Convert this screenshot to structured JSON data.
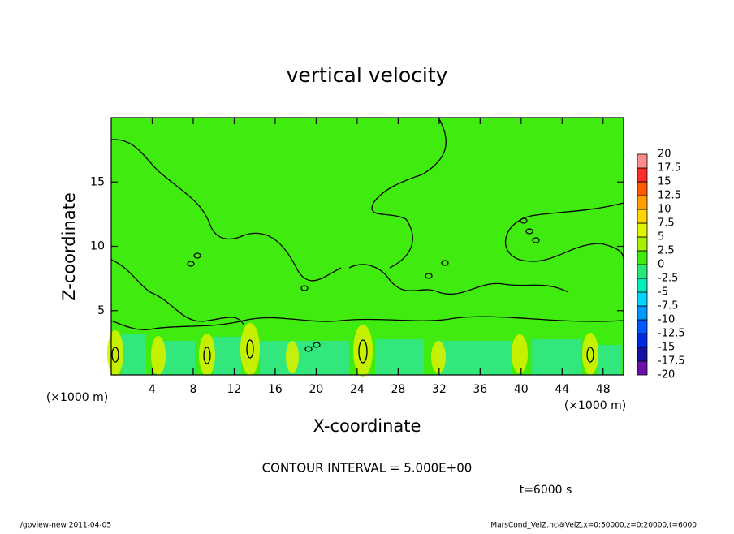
{
  "chart_data": {
    "type": "contour",
    "title": "vertical velocity",
    "x_label": "X-coordinate",
    "y_label": "Z-coordinate",
    "x_unit": "(×1000 m)",
    "xlim": [
      0,
      50
    ],
    "xticks": [
      4,
      8,
      12,
      16,
      20,
      24,
      28,
      32,
      36,
      40,
      44,
      48
    ],
    "ylim": [
      0,
      20
    ],
    "yticks": [
      5,
      10,
      15
    ],
    "colorbar": {
      "levels": [
        -20,
        -17.5,
        -15,
        -12.5,
        -10,
        -7.5,
        -5,
        -2.5,
        0,
        2.5,
        5,
        7.5,
        10,
        12.5,
        15,
        17.5,
        20
      ],
      "colors": [
        "#6a0fa8",
        "#1414a0",
        "#0028e0",
        "#0058ff",
        "#0098ff",
        "#00d4ff",
        "#00eebb",
        "#28e878",
        "#40ec10",
        "#a6f000",
        "#dcf400",
        "#ffd400",
        "#ffa000",
        "#ff5a00",
        "#ff2a2a",
        "#ff8c8c"
      ]
    },
    "contour_interval": "CONTOUR INTERVAL = 5.000E+00",
    "time_label": "t=6000 s",
    "footer_left": "./gpview-new  2011-04-05",
    "footer_right": "MarsCond_VelZ.nc@VelZ,x=0:50000,z=0:20000,t=6000"
  }
}
